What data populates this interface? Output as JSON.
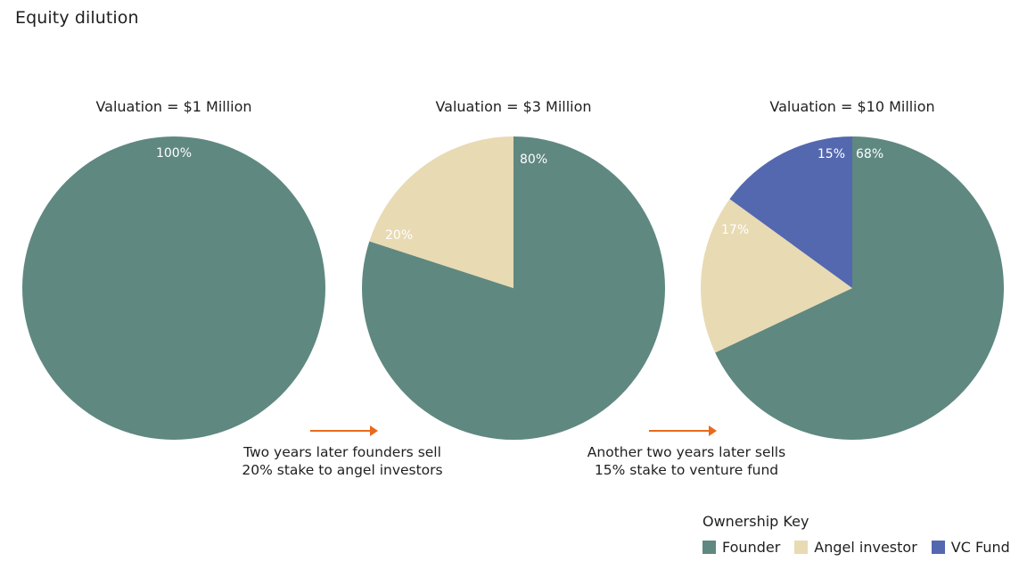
{
  "title": "Equity dilution",
  "chart_data": {
    "type": "pie",
    "series_names": [
      "Founder",
      "Angel investor",
      "VC Fund"
    ],
    "colors": {
      "Founder": "#5f8880",
      "Angel investor": "#e8dab3",
      "VC Fund": "#5468b0"
    },
    "pies": [
      {
        "title": "Valuation = $1 Million",
        "slices": [
          {
            "name": "Founder",
            "value": 100,
            "label": "100%"
          }
        ]
      },
      {
        "title": "Valuation = $3 Million",
        "slices": [
          {
            "name": "Founder",
            "value": 80,
            "label": "80%"
          },
          {
            "name": "Angel investor",
            "value": 20,
            "label": "20%"
          }
        ]
      },
      {
        "title": "Valuation = $10 Million",
        "slices": [
          {
            "name": "Founder",
            "value": 68,
            "label": "68%"
          },
          {
            "name": "Angel investor",
            "value": 17,
            "label": "17%"
          },
          {
            "name": "VC Fund",
            "value": 15,
            "label": "15%"
          }
        ]
      }
    ],
    "annotations": [
      {
        "lines": [
          "Two years later founders sell",
          "20% stake to angel investors"
        ]
      },
      {
        "lines": [
          "Another two years later sells",
          "15% stake to venture fund"
        ]
      }
    ],
    "arrow_color": "#e86a1a",
    "legend": {
      "title": "Ownership Key",
      "placement": "bottom-right",
      "items": [
        "Founder",
        "Angel investor",
        "VC Fund"
      ]
    }
  }
}
